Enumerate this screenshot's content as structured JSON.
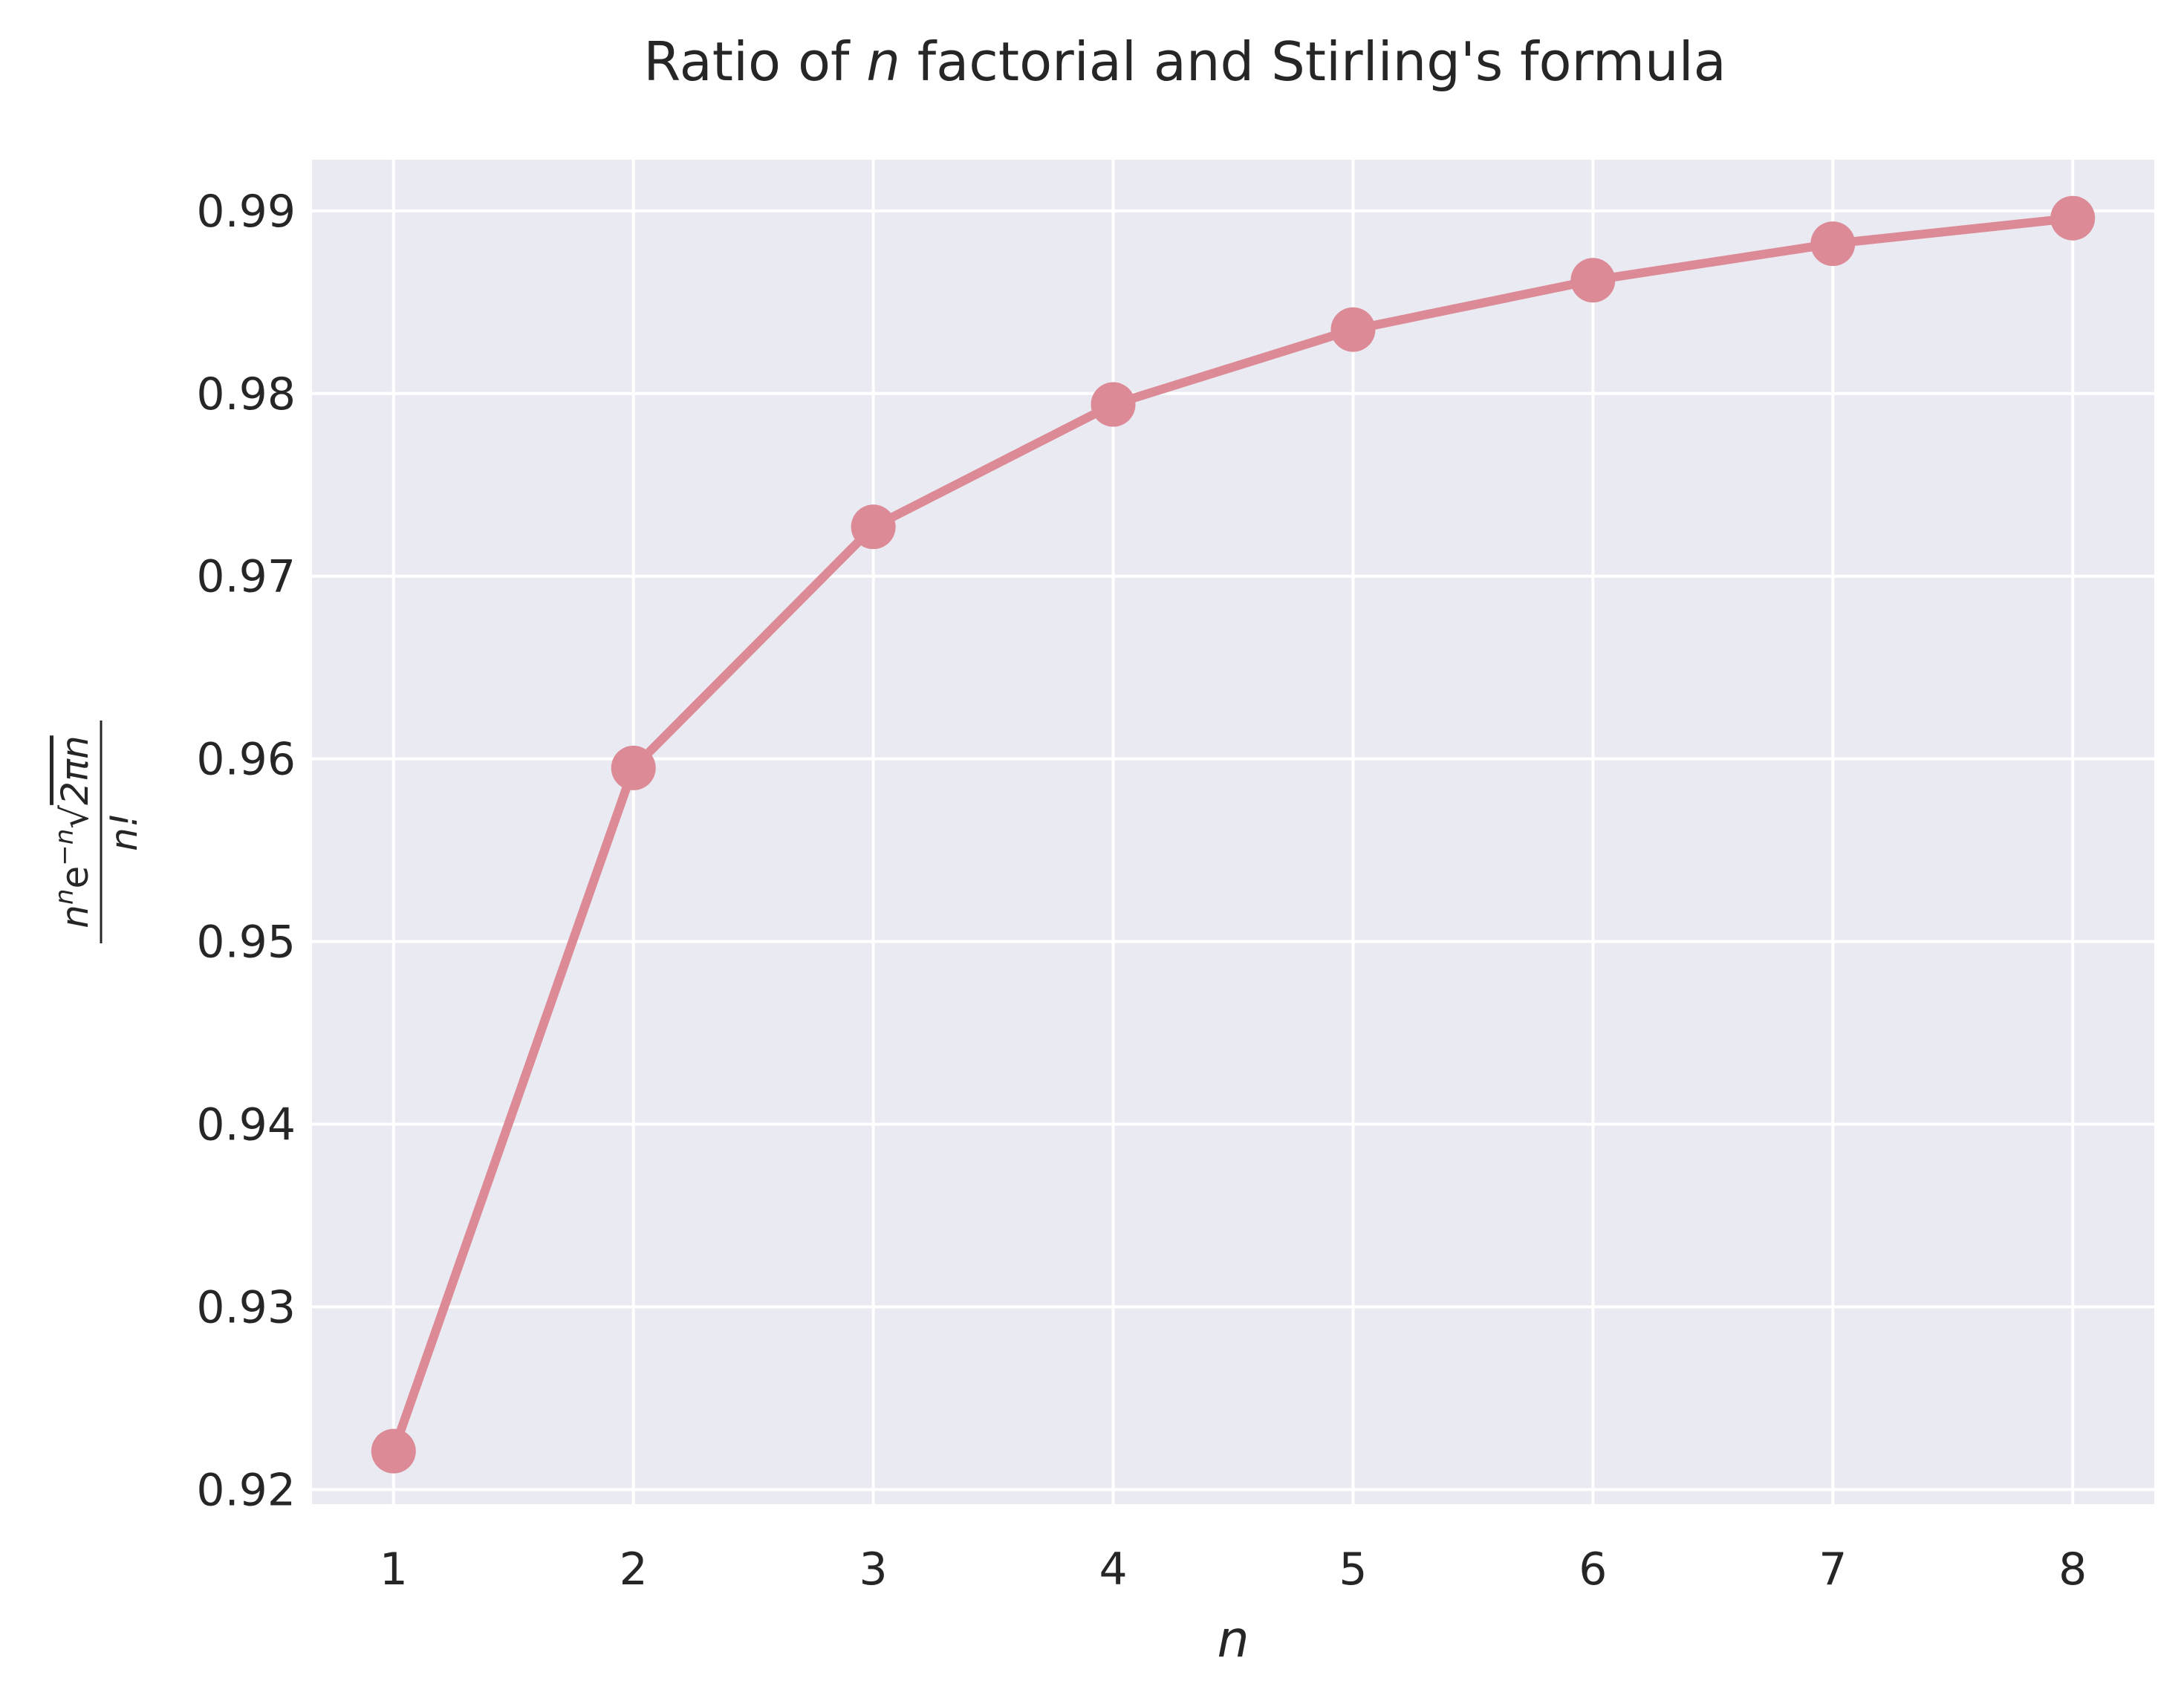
{
  "chart_data": {
    "type": "line",
    "title": {
      "prefix": "Ratio of ",
      "var": "n",
      "suffix": " factorial and Stirling's formula"
    },
    "xlabel": "n",
    "ylabel": {
      "num_base": "n",
      "num_exp1": "n",
      "num_mid": "e",
      "num_exp2": "−n",
      "sqrt_sign": "√",
      "sqrt_arg": "2πn",
      "denominator": "n!"
    },
    "x": [
      1,
      2,
      3,
      4,
      5,
      6,
      7,
      8
    ],
    "y": [
      0.9221,
      0.9595,
      0.9727,
      0.9794,
      0.9835,
      0.9862,
      0.9882,
      0.9896
    ],
    "xlim": [
      0.66,
      8.34
    ],
    "ylim": [
      0.9192,
      0.9928
    ],
    "xticks": [
      "1",
      "2",
      "3",
      "4",
      "5",
      "6",
      "7",
      "8"
    ],
    "yticks": [
      "0.92",
      "0.93",
      "0.94",
      "0.95",
      "0.96",
      "0.97",
      "0.98",
      "0.99"
    ],
    "grid": true,
    "colors": {
      "line": "#dc8a96",
      "background": "#eaeaf2",
      "grid": "#ffffff"
    }
  }
}
